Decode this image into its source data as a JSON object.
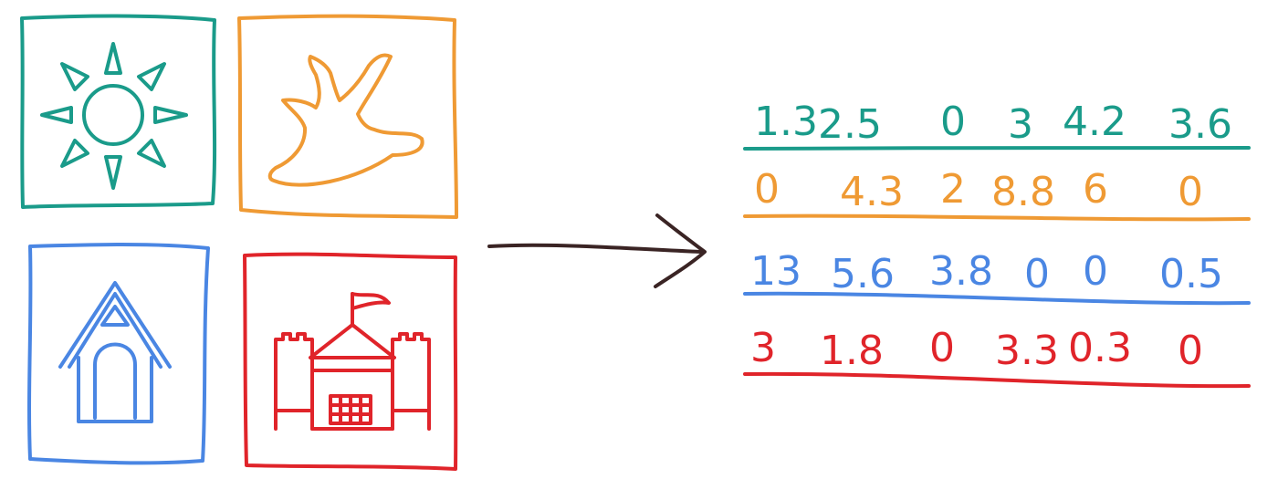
{
  "colors": {
    "teal": "#1a9b8a",
    "orange": "#ef9a34",
    "blue": "#4a86e3",
    "red": "#e0242a",
    "arrow": "#3a2424"
  },
  "images": [
    {
      "icon": "sun-icon",
      "color": "#1a9b8a"
    },
    {
      "icon": "banana-icon",
      "color": "#ef9a34"
    },
    {
      "icon": "doghouse-icon",
      "color": "#4a86e3"
    },
    {
      "icon": "castle-icon",
      "color": "#e0242a"
    }
  ],
  "arrow": {
    "icon": "right-arrow-icon"
  },
  "vectors": [
    {
      "color": "#1a9b8a",
      "values": [
        "1.3",
        "2.5",
        "0",
        "3",
        "4.2",
        "3.6"
      ]
    },
    {
      "color": "#ef9a34",
      "values": [
        "0",
        "4.3",
        "2",
        "8.8",
        "6",
        "0"
      ]
    },
    {
      "color": "#4a86e3",
      "values": [
        "13",
        "5.6",
        "3.8",
        "0",
        "0",
        "0.5"
      ]
    },
    {
      "color": "#e0242a",
      "values": [
        "3",
        "1.8",
        "0",
        "3.3",
        "0.3",
        "0"
      ]
    }
  ]
}
